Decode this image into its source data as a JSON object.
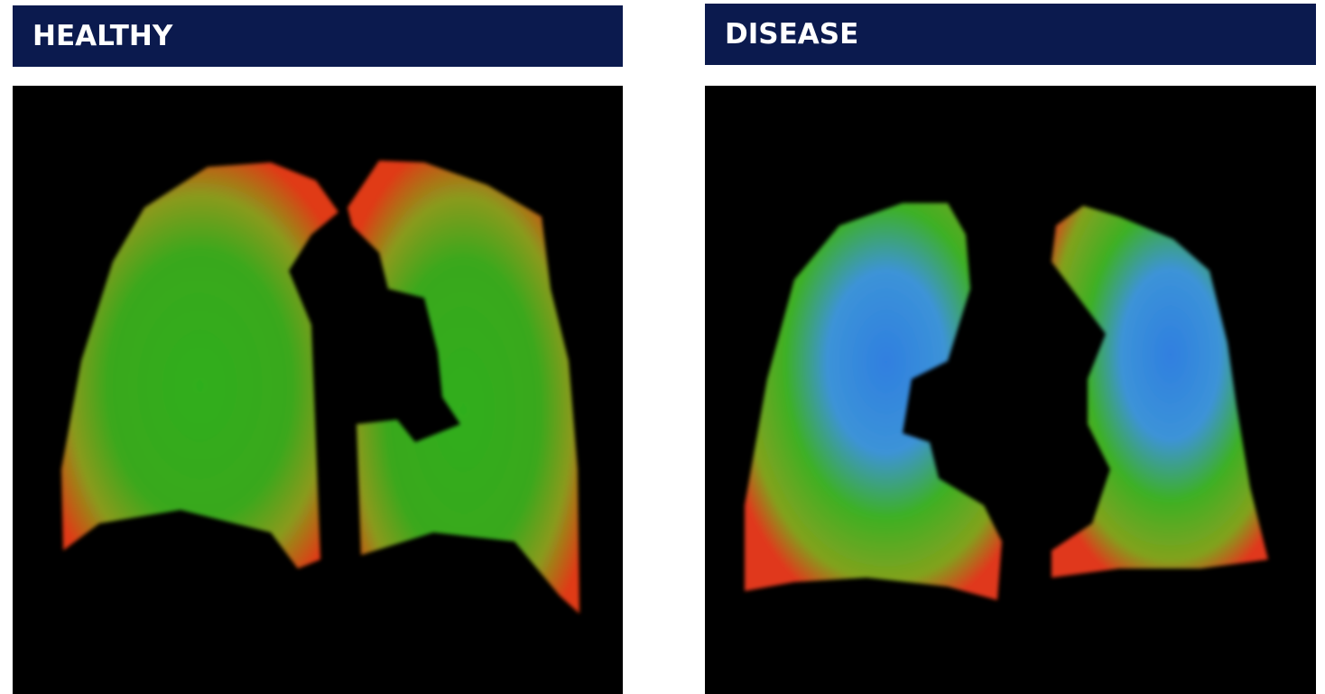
{
  "panels": [
    {
      "title": "HEALTHY"
    },
    {
      "title": "DISEASE"
    }
  ]
}
